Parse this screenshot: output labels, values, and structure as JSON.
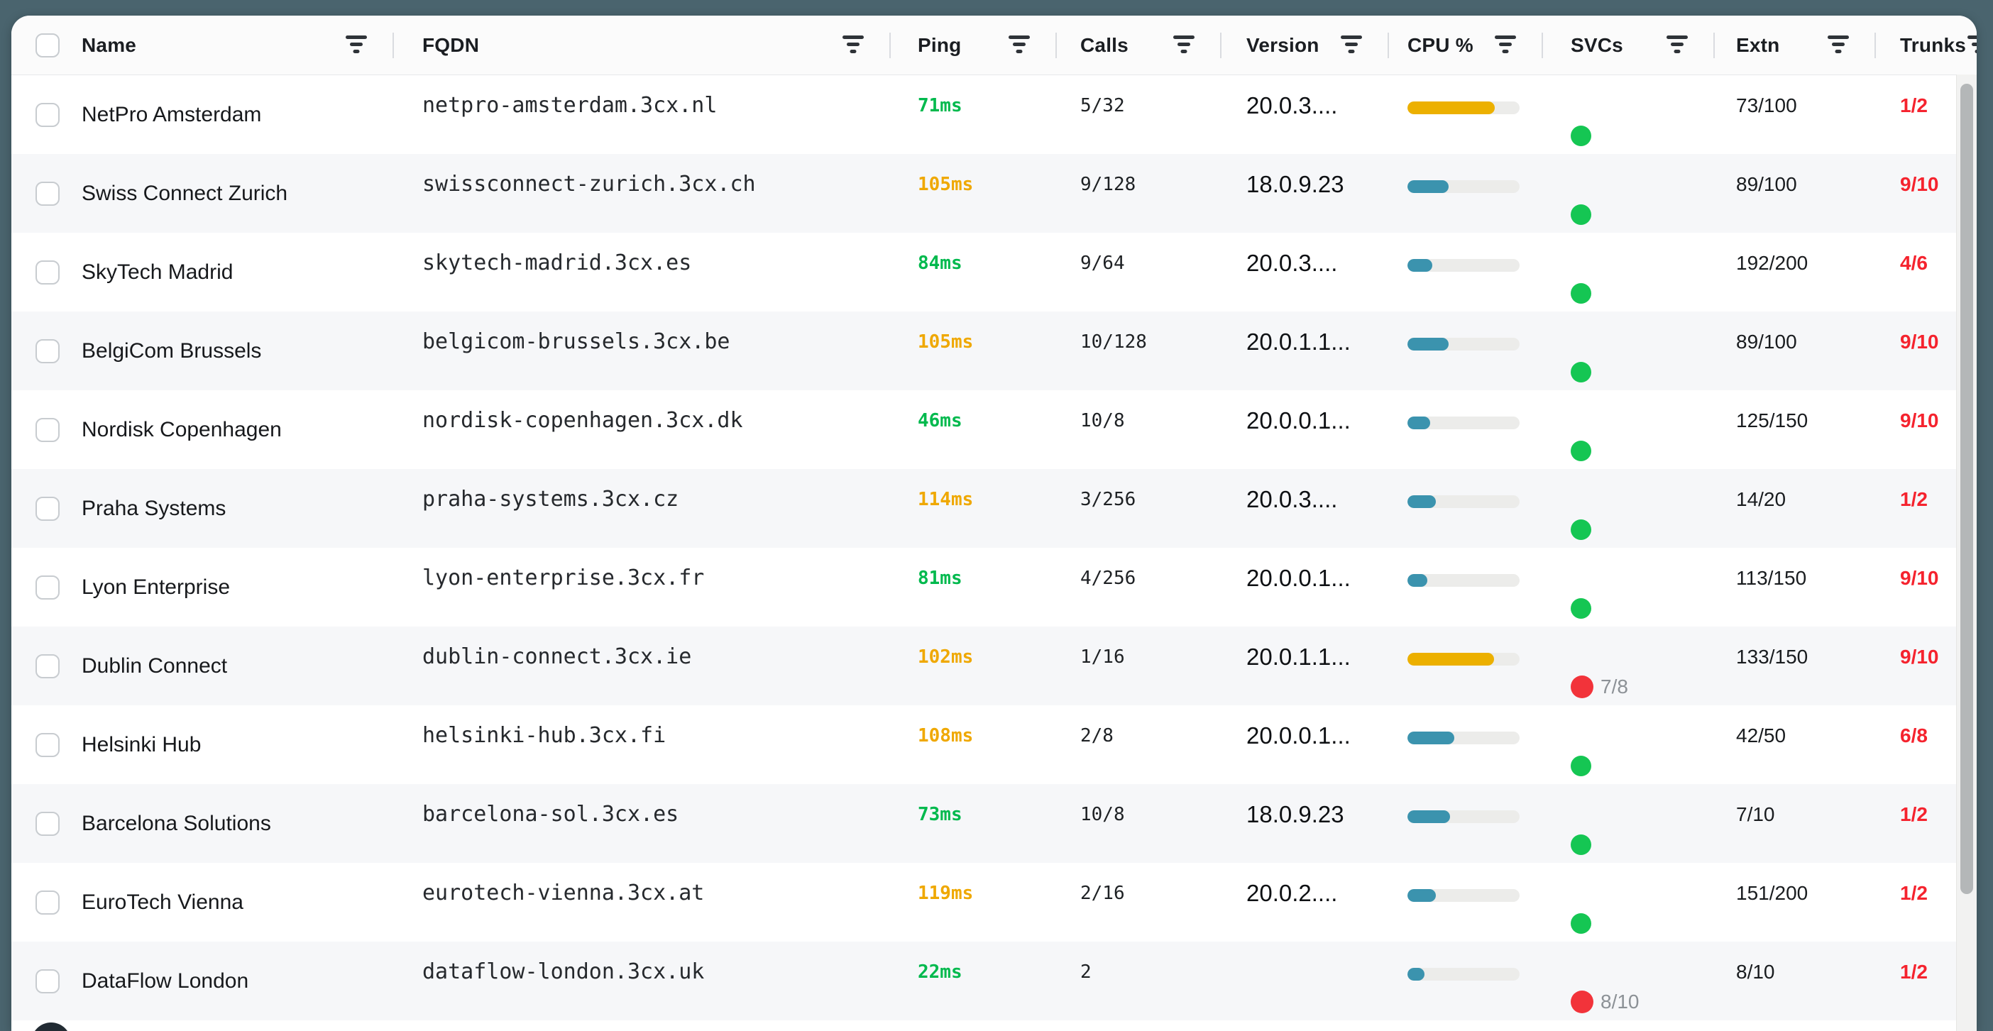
{
  "table": {
    "columns": [
      {
        "id": "name",
        "label": "Name"
      },
      {
        "id": "fqdn",
        "label": "FQDN"
      },
      {
        "id": "ping",
        "label": "Ping"
      },
      {
        "id": "calls",
        "label": "Calls"
      },
      {
        "id": "version",
        "label": "Version"
      },
      {
        "id": "cpu",
        "label": "CPU %"
      },
      {
        "id": "svcs",
        "label": "SVCs"
      },
      {
        "id": "extn",
        "label": "Extn"
      },
      {
        "id": "trunks",
        "label": "Trunks"
      }
    ],
    "rows": [
      {
        "name": "NetPro Amsterdam",
        "fqdn": "netpro-amsterdam.3cx.nl",
        "ping": "71ms",
        "ping_status": "good",
        "calls": "5/32",
        "version": "20.0.3....",
        "cpu_pct": 78,
        "cpu_level": "high",
        "svc_status": "ok",
        "svc_label": "",
        "extn": "73/100",
        "trunks": "1/2"
      },
      {
        "name": "Swiss Connect Zurich",
        "fqdn": "swissconnect-zurich.3cx.ch",
        "ping": "105ms",
        "ping_status": "warn",
        "calls": "9/128",
        "version": "18.0.9.23",
        "cpu_pct": 37,
        "cpu_level": "normal",
        "svc_status": "ok",
        "svc_label": "",
        "extn": "89/100",
        "trunks": "9/10"
      },
      {
        "name": "SkyTech Madrid",
        "fqdn": "skytech-madrid.3cx.es",
        "ping": "84ms",
        "ping_status": "good",
        "calls": "9/64",
        "version": "20.0.3....",
        "cpu_pct": 22,
        "cpu_level": "normal",
        "svc_status": "ok",
        "svc_label": "",
        "extn": "192/200",
        "trunks": "4/6"
      },
      {
        "name": "BelgiCom Brussels",
        "fqdn": "belgicom-brussels.3cx.be",
        "ping": "105ms",
        "ping_status": "warn",
        "calls": "10/128",
        "version": "20.0.1.1...",
        "cpu_pct": 37,
        "cpu_level": "normal",
        "svc_status": "ok",
        "svc_label": "",
        "extn": "89/100",
        "trunks": "9/10"
      },
      {
        "name": "Nordisk Copenhagen",
        "fqdn": "nordisk-copenhagen.3cx.dk",
        "ping": "46ms",
        "ping_status": "good",
        "calls": "10/8",
        "version": "20.0.0.1...",
        "cpu_pct": 20,
        "cpu_level": "normal",
        "svc_status": "ok",
        "svc_label": "",
        "extn": "125/150",
        "trunks": "9/10"
      },
      {
        "name": "Praha Systems",
        "fqdn": "praha-systems.3cx.cz",
        "ping": "114ms",
        "ping_status": "warn",
        "calls": "3/256",
        "version": "20.0.3....",
        "cpu_pct": 25,
        "cpu_level": "normal",
        "svc_status": "ok",
        "svc_label": "",
        "extn": "14/20",
        "trunks": "1/2"
      },
      {
        "name": "Lyon Enterprise",
        "fqdn": "lyon-enterprise.3cx.fr",
        "ping": "81ms",
        "ping_status": "good",
        "calls": "4/256",
        "version": "20.0.0.1...",
        "cpu_pct": 18,
        "cpu_level": "normal",
        "svc_status": "ok",
        "svc_label": "",
        "extn": "113/150",
        "trunks": "9/10"
      },
      {
        "name": "Dublin Connect",
        "fqdn": "dublin-connect.3cx.ie",
        "ping": "102ms",
        "ping_status": "warn",
        "calls": "1/16",
        "version": "20.0.1.1...",
        "cpu_pct": 77,
        "cpu_level": "high",
        "svc_status": "err",
        "svc_label": "7/8",
        "extn": "133/150",
        "trunks": "9/10"
      },
      {
        "name": "Helsinki Hub",
        "fqdn": "helsinki-hub.3cx.fi",
        "ping": "108ms",
        "ping_status": "warn",
        "calls": "2/8",
        "version": "20.0.0.1...",
        "cpu_pct": 42,
        "cpu_level": "normal",
        "svc_status": "ok",
        "svc_label": "",
        "extn": "42/50",
        "trunks": "6/8"
      },
      {
        "name": "Barcelona Solutions",
        "fqdn": "barcelona-sol.3cx.es",
        "ping": "73ms",
        "ping_status": "good",
        "calls": "10/8",
        "version": "18.0.9.23",
        "cpu_pct": 38,
        "cpu_level": "normal",
        "svc_status": "ok",
        "svc_label": "",
        "extn": "7/10",
        "trunks": "1/2"
      },
      {
        "name": "EuroTech Vienna",
        "fqdn": "eurotech-vienna.3cx.at",
        "ping": "119ms",
        "ping_status": "warn",
        "calls": "2/16",
        "version": "20.0.2....",
        "cpu_pct": 25,
        "cpu_level": "normal",
        "svc_status": "ok",
        "svc_label": "",
        "extn": "151/200",
        "trunks": "1/2"
      },
      {
        "name": "DataFlow London",
        "fqdn": "dataflow-london.3cx.uk",
        "ping": "22ms",
        "ping_status": "good",
        "calls": "2",
        "version": "",
        "cpu_pct": 15,
        "cpu_level": "normal",
        "svc_status": "err",
        "svc_label": "8/10",
        "extn": "8/10",
        "trunks": "1/2"
      }
    ]
  },
  "colors": {
    "page_bg": "#4a646e",
    "card_bg": "#ffffff",
    "header_bg": "#fbfbfb",
    "row_alt_bg": "#f6f7f9",
    "text_primary": "#17191c",
    "text_secondary": "#8c9196",
    "ping_good": "#00b94d",
    "ping_warn": "#efa800",
    "trunk_alert": "#f5232e",
    "dot_ok": "#15c653",
    "dot_err": "#f2333a",
    "bar_normal": "#3b93ae",
    "bar_high": "#ecb000",
    "bar_track": "#ececea",
    "divider": "#dadce0",
    "checkbox_border": "#c8ccd0",
    "scroll_thumb": "#b4b7b8",
    "scroll_track": "#f2f2f1",
    "fab_bg": "#222b33"
  },
  "icons": {
    "column_filter": "filter-icon",
    "svc_ok": "green-dot",
    "svc_error": "red-dot"
  },
  "scrollbar": {
    "visible": true
  }
}
